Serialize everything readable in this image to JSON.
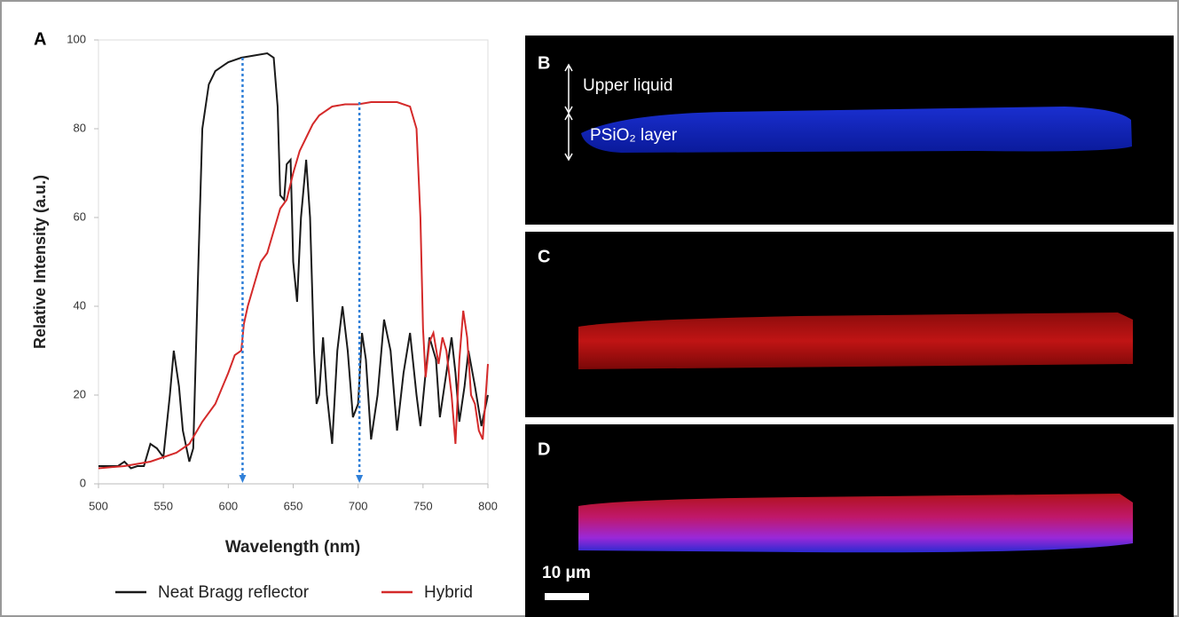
{
  "chart_data": {
    "type": "line",
    "panel_label": "A",
    "xlabel": "Wavelength (nm)",
    "ylabel": "Relative Intensity (a.u.)",
    "xlim": [
      500,
      800
    ],
    "ylim": [
      0,
      100
    ],
    "xticks": [
      500,
      550,
      600,
      650,
      700,
      750,
      800
    ],
    "yticks": [
      0,
      20,
      40,
      60,
      80,
      100
    ],
    "series": [
      {
        "name": "Neat Bragg reflector",
        "color": "#1a1a1a",
        "x": [
          500,
          505,
          510,
          515,
          520,
          525,
          530,
          535,
          540,
          545,
          550,
          555,
          558,
          562,
          565,
          570,
          573,
          577,
          580,
          585,
          590,
          600,
          610,
          620,
          630,
          635,
          638,
          640,
          643,
          645,
          648,
          650,
          653,
          656,
          660,
          663,
          666,
          668,
          670,
          673,
          676,
          680,
          684,
          688,
          692,
          696,
          700,
          703,
          706,
          710,
          715,
          720,
          725,
          730,
          735,
          740,
          745,
          748,
          752,
          755,
          760,
          763,
          768,
          772,
          775,
          778,
          782,
          785,
          790,
          795,
          800
        ],
        "values": [
          4,
          4,
          4,
          4,
          5,
          3.5,
          4,
          4,
          9,
          8,
          6,
          20,
          30,
          22,
          12,
          5,
          8,
          50,
          80,
          90,
          93,
          95,
          96,
          96.5,
          97,
          96,
          85,
          65,
          64,
          72,
          73,
          50,
          41,
          60,
          73,
          60,
          30,
          18,
          20,
          33,
          20,
          9,
          30,
          40,
          30,
          15,
          18,
          34,
          28,
          10,
          20,
          37,
          30,
          12,
          25,
          34,
          20,
          13,
          25,
          33,
          28,
          15,
          25,
          33,
          25,
          14,
          22,
          30,
          22,
          13,
          20
        ]
      },
      {
        "name": "Hybrid",
        "color": "#d42a2a",
        "x": [
          500,
          520,
          540,
          560,
          570,
          580,
          590,
          600,
          605,
          610,
          612,
          615,
          620,
          625,
          630,
          635,
          640,
          645,
          650,
          655,
          660,
          665,
          670,
          680,
          690,
          700,
          710,
          720,
          730,
          740,
          745,
          748,
          750,
          752,
          755,
          758,
          762,
          765,
          768,
          772,
          775,
          778,
          781,
          784,
          787,
          790,
          793,
          796,
          800
        ],
        "values": [
          3.5,
          4,
          5,
          7,
          9,
          14,
          18,
          25,
          29,
          30,
          36,
          40,
          45,
          50,
          52,
          57,
          62,
          64,
          70,
          75,
          78,
          81,
          83,
          85,
          85.5,
          85.5,
          86,
          86,
          86,
          85,
          80,
          60,
          35,
          24,
          32,
          34,
          27,
          33,
          30,
          20,
          9,
          28,
          39,
          33,
          20,
          18,
          12,
          10,
          27
        ]
      }
    ],
    "arrows": {
      "x": [
        611,
        701
      ],
      "top": [
        96,
        86
      ],
      "color": "#2f7fd8"
    },
    "legend": "bottom"
  },
  "panels": [
    {
      "label": "B",
      "annotations": [
        "Upper liquid",
        "PSiO₂ layer"
      ]
    },
    {
      "label": "C"
    },
    {
      "label": "D",
      "scale_bar": "10 μm"
    }
  ]
}
